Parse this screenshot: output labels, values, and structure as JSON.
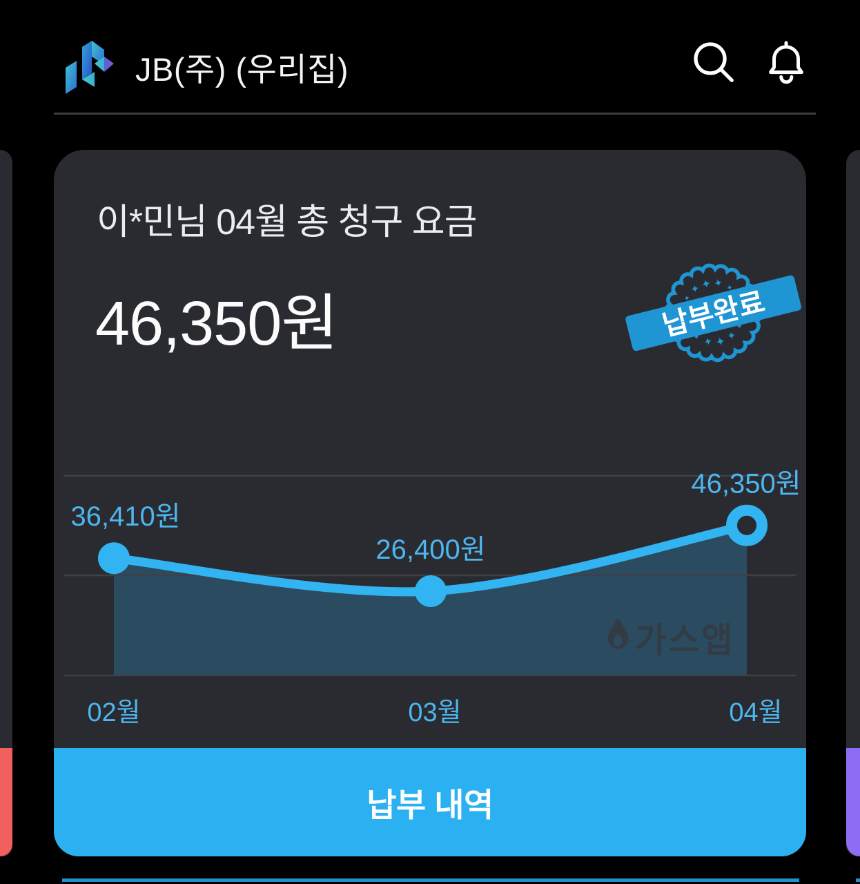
{
  "header": {
    "app_title": "JB(주) (우리집)"
  },
  "card": {
    "title": "이*민님 04월 총 청구 요금",
    "amount": "46,350원",
    "stamp_label": "납부완료",
    "watermark_label": "가스앱",
    "button_label": "납부 내역"
  },
  "chart_data": {
    "type": "line",
    "categories": [
      "02월",
      "03월",
      "04월"
    ],
    "values": [
      36410,
      26400,
      46350
    ],
    "point_labels": [
      "36,410원",
      "26,400원",
      "46,350원"
    ],
    "ylim": [
      0,
      62000
    ],
    "grid": true,
    "legend": false,
    "line_color": "#33b4f2",
    "label_color": "#4db6ef",
    "area_fill": "rgba(47,170,235,0.26)",
    "gridline_color": "#3e4045",
    "last_point_style": "ring"
  },
  "colors": {
    "accent": "#2bb1f2",
    "stamp_blue": "#2095d3",
    "card_bg": "#2a2b31",
    "divider": "#3b3d41",
    "prev_card_accent": "#f15f5f",
    "next_card_accent": "#8d6df3",
    "next_section_strip": "#2191cd",
    "watermark": "#333c45"
  }
}
